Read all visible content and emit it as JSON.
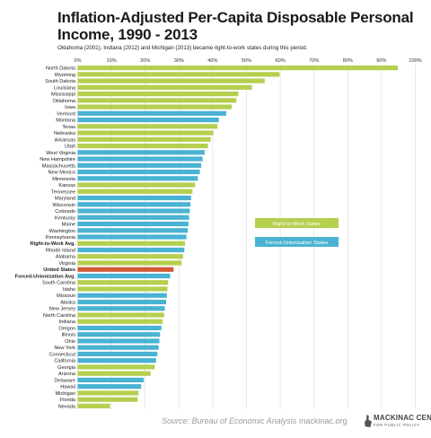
{
  "title": "Inflation-Adjusted Per-Capita Disposable Personal Income, 1990 - 2013",
  "subtitle": "Oklahoma (2001), Indiana (2012) and Michigan (2013) became right-to-work states during this period.",
  "footer": {
    "source": "Source: Bureau of Economic Analysis",
    "site": "mackinac.org",
    "logo_main": "MACKINAC CENTER",
    "logo_sub": "FOR PUBLIC POLICY"
  },
  "colors": {
    "right_to_work": "#b5cf4f",
    "forced_union": "#4ab3d3",
    "united_states": "#d25a38",
    "grid": "#d9d9d9"
  },
  "chart_data": {
    "type": "bar",
    "orientation": "horizontal",
    "title": "Inflation-Adjusted Per-Capita Disposable Personal Income, 1990 - 2013",
    "subtitle": "Oklahoma (2001), Indiana (2012) and Michigan (2013) became right-to-work states during this period.",
    "xlim": [
      0,
      100
    ],
    "x_ticks": [
      "0%",
      "10%",
      "20%",
      "30%",
      "40%",
      "50%",
      "60%",
      "70%",
      "80%",
      "90%",
      "100%"
    ],
    "x_tick_values": [
      0,
      10,
      20,
      30,
      40,
      50,
      60,
      70,
      80,
      90,
      100
    ],
    "grid": true,
    "legend_position": "right",
    "legend": [
      {
        "label": "Right-to-Work States",
        "group": "right_to_work"
      },
      {
        "label": "Forced-Unionization States",
        "group": "forced_union"
      }
    ],
    "bars": [
      {
        "label": "North Dakota",
        "value": 94.8,
        "group": "right_to_work"
      },
      {
        "label": "Wyoming",
        "value": 59.8,
        "group": "right_to_work"
      },
      {
        "label": "South Dakota",
        "value": 55.4,
        "group": "right_to_work"
      },
      {
        "label": "Louisiana",
        "value": 51.6,
        "group": "right_to_work"
      },
      {
        "label": "Mississippi",
        "value": 47.6,
        "group": "right_to_work"
      },
      {
        "label": "Oklahoma",
        "value": 47.0,
        "group": "right_to_work"
      },
      {
        "label": "Iowa",
        "value": 45.6,
        "group": "right_to_work"
      },
      {
        "label": "Vermont",
        "value": 44.0,
        "group": "forced_union"
      },
      {
        "label": "Montana",
        "value": 41.8,
        "group": "forced_union"
      },
      {
        "label": "Texas",
        "value": 41.4,
        "group": "right_to_work"
      },
      {
        "label": "Nebraska",
        "value": 40.2,
        "group": "right_to_work"
      },
      {
        "label": "Arkansas",
        "value": 39.4,
        "group": "right_to_work"
      },
      {
        "label": "Utah",
        "value": 38.6,
        "group": "right_to_work"
      },
      {
        "label": "West Virginia",
        "value": 37.6,
        "group": "forced_union"
      },
      {
        "label": "New Hampshire",
        "value": 37.0,
        "group": "forced_union"
      },
      {
        "label": "Massachusetts",
        "value": 36.6,
        "group": "forced_union"
      },
      {
        "label": "New Mexico",
        "value": 36.2,
        "group": "forced_union"
      },
      {
        "label": "Minnesota",
        "value": 35.6,
        "group": "forced_union"
      },
      {
        "label": "Kansas",
        "value": 34.8,
        "group": "right_to_work"
      },
      {
        "label": "Tennessee",
        "value": 34.0,
        "group": "right_to_work"
      },
      {
        "label": "Maryland",
        "value": 33.6,
        "group": "forced_union"
      },
      {
        "label": "Wisconsin",
        "value": 33.4,
        "group": "forced_union"
      },
      {
        "label": "Colorado",
        "value": 33.2,
        "group": "forced_union"
      },
      {
        "label": "Kentucky",
        "value": 33.0,
        "group": "forced_union"
      },
      {
        "label": "Maine",
        "value": 32.8,
        "group": "forced_union"
      },
      {
        "label": "Washington",
        "value": 32.6,
        "group": "forced_union"
      },
      {
        "label": "Pennsylvania",
        "value": 32.2,
        "group": "forced_union"
      },
      {
        "label": "Right-to-Work Avg.",
        "value": 31.8,
        "group": "right_to_work",
        "bold": true
      },
      {
        "label": "Rhode Island",
        "value": 31.6,
        "group": "forced_union"
      },
      {
        "label": "Alabama",
        "value": 31.2,
        "group": "right_to_work"
      },
      {
        "label": "Virginia",
        "value": 30.8,
        "group": "right_to_work"
      },
      {
        "label": "United States",
        "value": 28.4,
        "group": "united_states",
        "bold": true
      },
      {
        "label": "Forced-Unionization Avg.",
        "value": 27.4,
        "group": "forced_union",
        "bold": true
      },
      {
        "label": "South Carolina",
        "value": 26.8,
        "group": "right_to_work"
      },
      {
        "label": "Idaho",
        "value": 26.6,
        "group": "right_to_work"
      },
      {
        "label": "Missouri",
        "value": 26.4,
        "group": "forced_union"
      },
      {
        "label": "Alaska",
        "value": 26.2,
        "group": "forced_union"
      },
      {
        "label": "New Jersey",
        "value": 25.8,
        "group": "forced_union"
      },
      {
        "label": "North Carolina",
        "value": 25.6,
        "group": "right_to_work"
      },
      {
        "label": "Indiana",
        "value": 25.2,
        "group": "right_to_work"
      },
      {
        "label": "Oregon",
        "value": 24.8,
        "group": "forced_union"
      },
      {
        "label": "Illinois",
        "value": 24.4,
        "group": "forced_union"
      },
      {
        "label": "Ohio",
        "value": 24.2,
        "group": "forced_union"
      },
      {
        "label": "New York",
        "value": 24.0,
        "group": "forced_union"
      },
      {
        "label": "Connecticut",
        "value": 23.6,
        "group": "forced_union"
      },
      {
        "label": "California",
        "value": 23.2,
        "group": "forced_union"
      },
      {
        "label": "Georgia",
        "value": 22.8,
        "group": "right_to_work"
      },
      {
        "label": "Arizona",
        "value": 21.6,
        "group": "right_to_work"
      },
      {
        "label": "Delaware",
        "value": 19.6,
        "group": "forced_union"
      },
      {
        "label": "Hawaii",
        "value": 18.8,
        "group": "forced_union"
      },
      {
        "label": "Michigan",
        "value": 18.0,
        "group": "right_to_work"
      },
      {
        "label": "Florida",
        "value": 17.8,
        "group": "right_to_work"
      },
      {
        "label": "Nevada",
        "value": 9.6,
        "group": "right_to_work"
      }
    ]
  }
}
